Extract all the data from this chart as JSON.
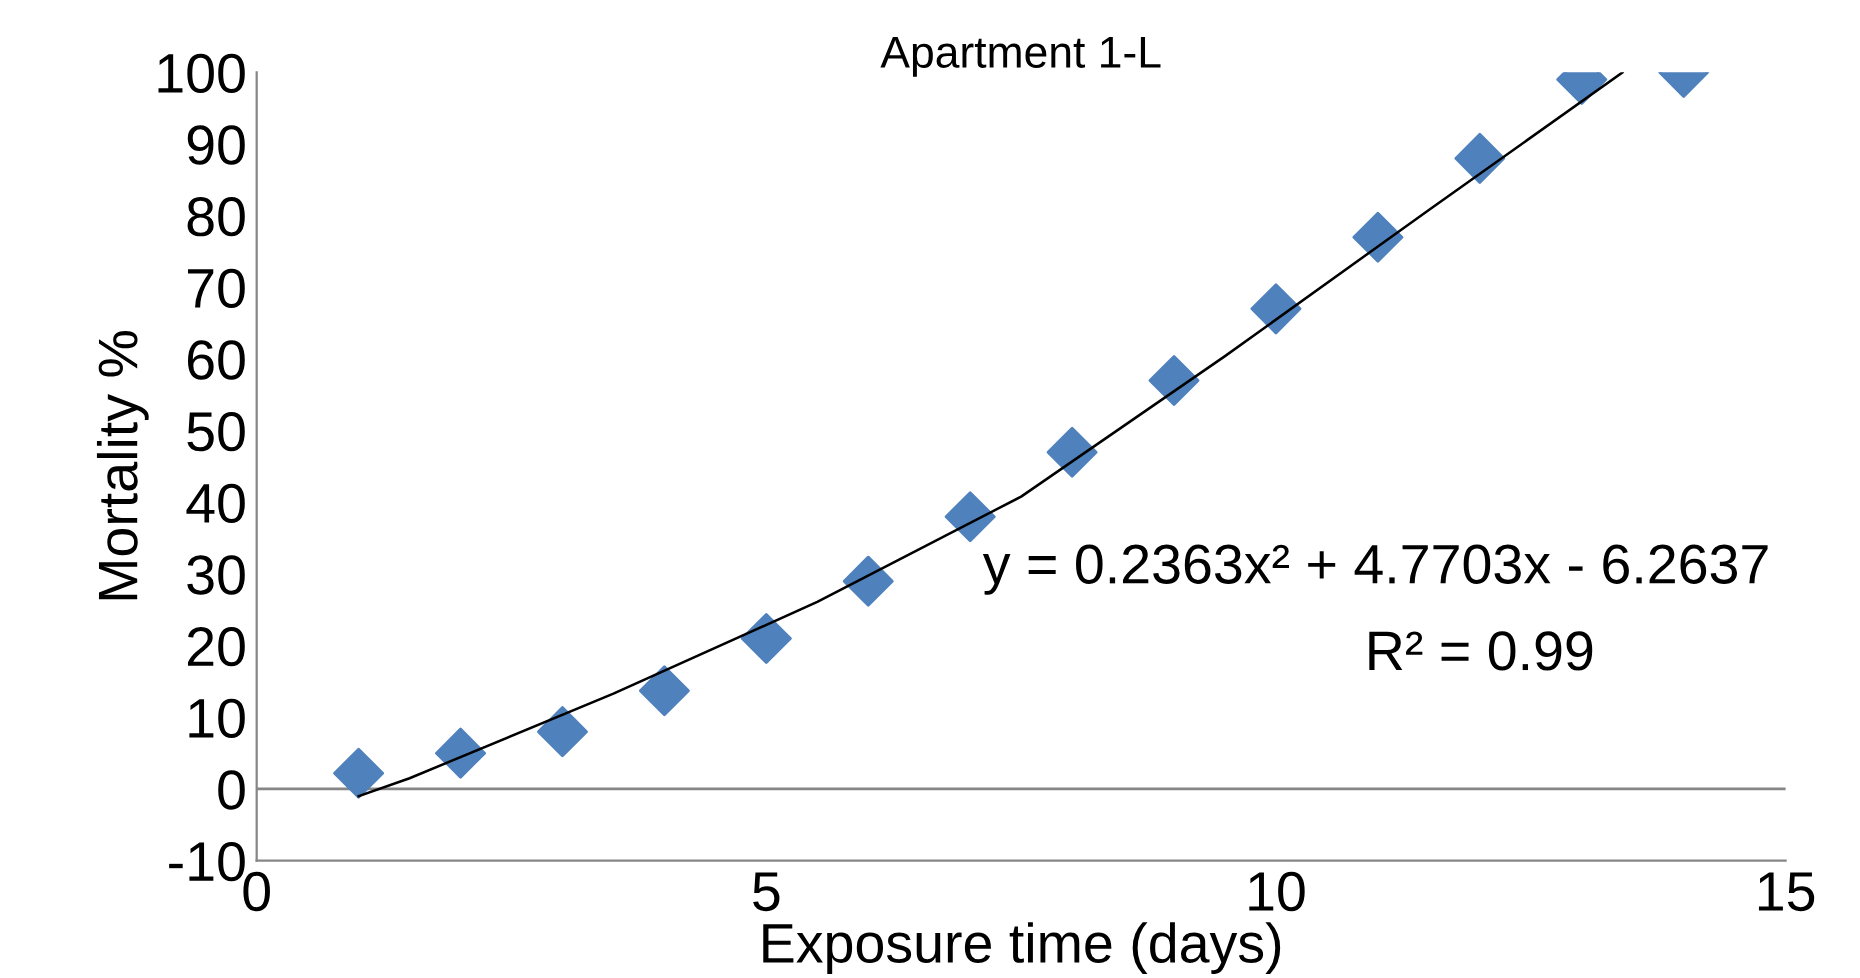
{
  "chart_data": {
    "type": "scatter",
    "title": "Apartment 1-L",
    "xlabel": "Exposure time (days)",
    "ylabel": "Mortality %",
    "x": [
      1,
      2,
      3,
      4,
      5,
      6,
      7,
      8,
      9,
      10,
      11,
      12,
      13,
      14
    ],
    "series": [
      {
        "color": "#4f81bd",
        "marker": "diamond",
        "values": [
          2.2,
          5,
          8,
          13.7,
          21,
          29,
          38,
          47,
          57,
          67,
          77,
          88,
          99,
          100
        ]
      },
      {
        "type": "line",
        "color": "#000000",
        "marker": "none",
        "x": [
          1,
          1.5,
          3.5,
          5.5,
          7.5,
          9.5,
          11.5,
          13.4
        ],
        "values": [
          -1,
          1.5,
          13.3,
          26.1,
          40.8,
          60.4,
          80.8,
          100
        ]
      }
    ],
    "annotations": [
      "y = 0.2363x² + 4.7703x - 6.2637",
      "R² = 0.99"
    ],
    "ref_lines": [
      {
        "axis": "y",
        "value": 0,
        "color": "#868686"
      }
    ],
    "xlim": [
      0,
      15
    ],
    "xticks": [
      0,
      5,
      10,
      15
    ],
    "ylim": [
      -10,
      100
    ],
    "yticks": [
      -10,
      0,
      10,
      20,
      30,
      40,
      50,
      60,
      70,
      80,
      90,
      100
    ],
    "grid": false,
    "legend": false
  }
}
